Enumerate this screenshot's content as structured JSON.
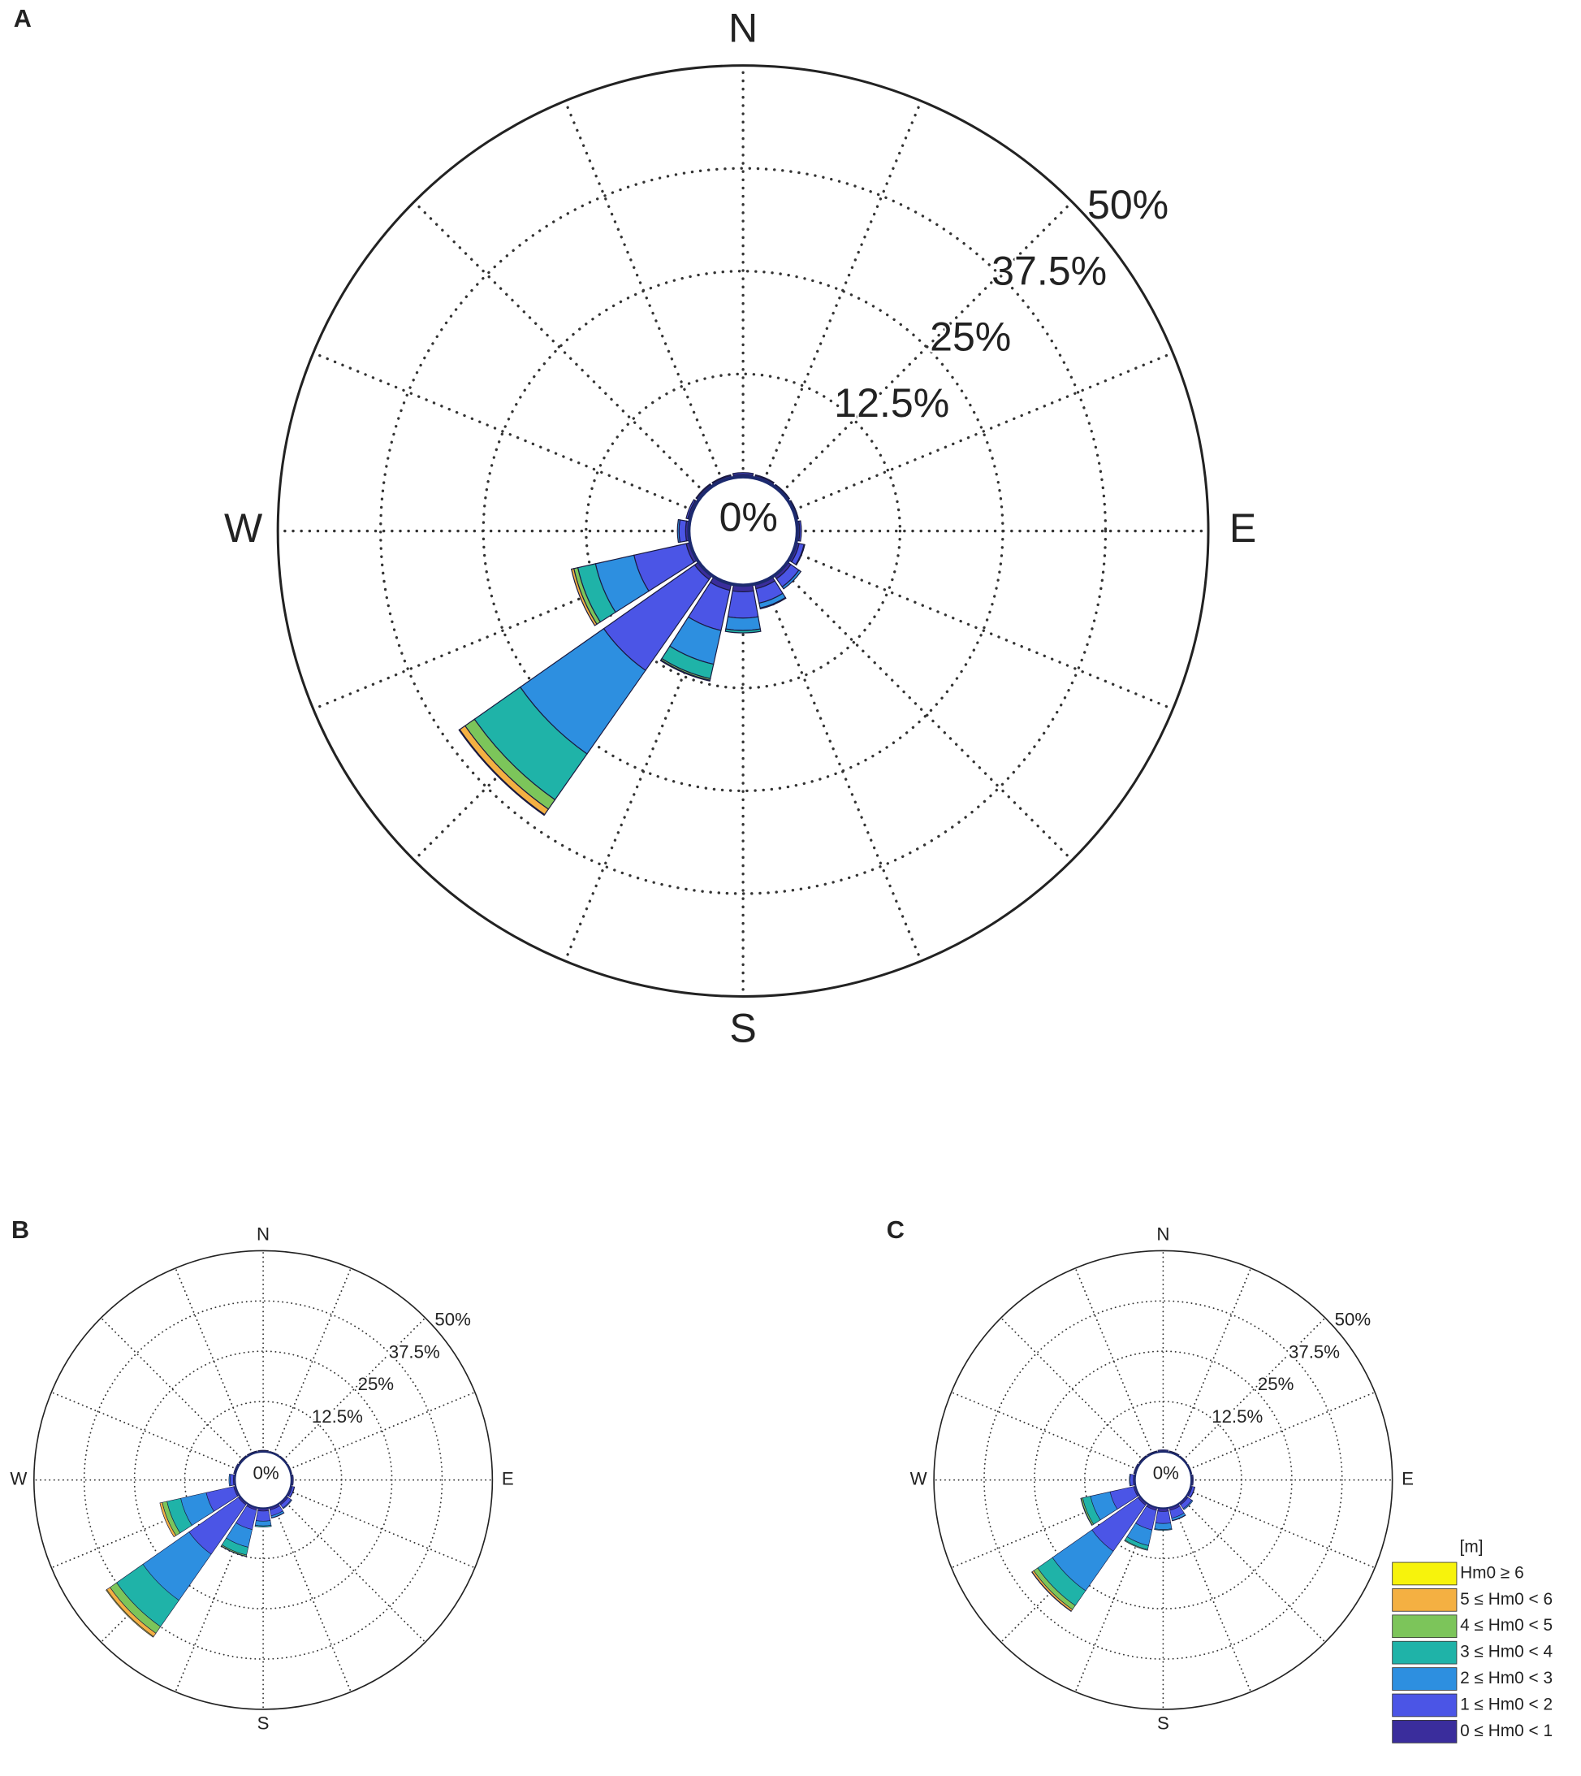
{
  "chart_data": [
    {
      "type": "rose",
      "label": "A",
      "x": [
        0,
        22.5,
        45,
        67.5,
        90,
        112.5,
        135,
        157.5,
        180,
        202.5,
        225,
        247.5,
        270,
        292.5,
        315,
        337.5
      ],
      "xticks": [
        {
          "value": 0,
          "label": "N"
        },
        {
          "value": 90,
          "label": "E"
        },
        {
          "value": 180,
          "label": "S"
        },
        {
          "value": 270,
          "label": "W"
        }
      ],
      "rlim": [
        0,
        50
      ],
      "rticks": [
        {
          "value": 0,
          "label": "0%"
        },
        {
          "value": 12.5,
          "label": "12.5%"
        },
        {
          "value": 25,
          "label": "25%"
        },
        {
          "value": 37.5,
          "label": "37.5%"
        },
        {
          "value": 50,
          "label": "50%"
        }
      ],
      "grid": true,
      "series": [
        {
          "color": "#3a2d9c",
          "values": [
            0.3,
            0.3,
            0.2,
            0.2,
            0.3,
            0.4,
            0.5,
            0.6,
            0.8,
            0.8,
            0.6,
            0.5,
            0.4,
            0.3,
            0.3,
            0.3
          ]
        },
        {
          "color": "#4b55e6",
          "values": [
            0.2,
            0.1,
            0.1,
            0.1,
            0.2,
            0.6,
            1.2,
            1.8,
            3.2,
            5,
            13.5,
            6.5,
            0.8,
            0.2,
            0.1,
            0.1
          ]
        },
        {
          "color": "#2d8fe0",
          "values": [
            0,
            0,
            0,
            0,
            0,
            0.1,
            0.3,
            0.6,
            1.5,
            4.2,
            12.4,
            4.8,
            0.2,
            0,
            0,
            0
          ]
        },
        {
          "color": "#1fb3a8",
          "values": [
            0,
            0,
            0,
            0,
            0,
            0,
            0,
            0.1,
            0.3,
            1.8,
            6.8,
            2.2,
            0,
            0,
            0,
            0
          ]
        },
        {
          "color": "#7cc55a",
          "values": [
            0,
            0,
            0,
            0,
            0,
            0,
            0,
            0,
            0,
            0.2,
            1.4,
            0.5,
            0,
            0,
            0,
            0
          ]
        },
        {
          "color": "#f4b042",
          "values": [
            0,
            0,
            0,
            0,
            0,
            0,
            0,
            0,
            0,
            0.1,
            0.8,
            0.3,
            0,
            0,
            0,
            0
          ]
        },
        {
          "color": "#f7f30c",
          "values": [
            0,
            0,
            0,
            0,
            0,
            0,
            0,
            0,
            0,
            0,
            0.1,
            0,
            0,
            0,
            0,
            0
          ]
        }
      ]
    },
    {
      "type": "rose",
      "label": "B",
      "x": [
        0,
        22.5,
        45,
        67.5,
        90,
        112.5,
        135,
        157.5,
        180,
        202.5,
        225,
        247.5,
        270,
        292.5,
        315,
        337.5
      ],
      "xticks": [
        {
          "value": 0,
          "label": "N"
        },
        {
          "value": 90,
          "label": "E"
        },
        {
          "value": 180,
          "label": "S"
        },
        {
          "value": 270,
          "label": "W"
        }
      ],
      "rlim": [
        0,
        50
      ],
      "rticks": [
        {
          "value": 0,
          "label": "0%"
        },
        {
          "value": 12.5,
          "label": "12.5%"
        },
        {
          "value": 25,
          "label": "25%"
        },
        {
          "value": 37.5,
          "label": "37.5%"
        },
        {
          "value": 50,
          "label": "50%"
        }
      ],
      "grid": true,
      "series": [
        {
          "color": "#3a2d9c",
          "values": [
            0.3,
            0.2,
            0.2,
            0.2,
            0.3,
            0.4,
            0.5,
            0.6,
            0.7,
            0.6,
            0.5,
            0.5,
            0.4,
            0.3,
            0.3,
            0.3
          ]
        },
        {
          "color": "#4b55e6",
          "values": [
            0.1,
            0.1,
            0.1,
            0.1,
            0.2,
            0.5,
            1,
            1.5,
            2.5,
            5,
            15,
            7,
            0.8,
            0.2,
            0.1,
            0.1
          ]
        },
        {
          "color": "#2d8fe0",
          "values": [
            0,
            0,
            0,
            0,
            0,
            0.1,
            0.2,
            0.5,
            1.2,
            4.5,
            14,
            6.5,
            0.3,
            0,
            0,
            0
          ]
        },
        {
          "color": "#1fb3a8",
          "values": [
            0,
            0,
            0,
            0,
            0,
            0,
            0,
            0.1,
            0.3,
            2,
            8,
            3.5,
            0,
            0,
            0,
            0
          ]
        },
        {
          "color": "#7cc55a",
          "values": [
            0,
            0,
            0,
            0,
            0,
            0,
            0,
            0,
            0,
            0.3,
            2,
            1.2,
            0,
            0,
            0,
            0
          ]
        },
        {
          "color": "#f4b042",
          "values": [
            0,
            0,
            0,
            0,
            0,
            0,
            0,
            0,
            0,
            0.1,
            1,
            0.6,
            0,
            0,
            0,
            0
          ]
        },
        {
          "color": "#f7f30c",
          "values": [
            0,
            0,
            0,
            0,
            0,
            0,
            0,
            0,
            0,
            0,
            0.2,
            0,
            0,
            0,
            0,
            0
          ]
        }
      ]
    },
    {
      "type": "rose",
      "label": "C",
      "x": [
        0,
        22.5,
        45,
        67.5,
        90,
        112.5,
        135,
        157.5,
        180,
        202.5,
        225,
        247.5,
        270,
        292.5,
        315,
        337.5
      ],
      "xticks": [
        {
          "value": 0,
          "label": "N"
        },
        {
          "value": 90,
          "label": "E"
        },
        {
          "value": 180,
          "label": "S"
        },
        {
          "value": 270,
          "label": "W"
        }
      ],
      "rlim": [
        0,
        50
      ],
      "rticks": [
        {
          "value": 0,
          "label": "0%"
        },
        {
          "value": 12.5,
          "label": "12.5%"
        },
        {
          "value": 25,
          "label": "25%"
        },
        {
          "value": 37.5,
          "label": "37.5%"
        },
        {
          "value": 50,
          "label": "50%"
        }
      ],
      "grid": true,
      "legend": "lower right",
      "legend_title": "[m]",
      "series": [
        {
          "name": "0 ≤ Hm0 < 1",
          "color": "#3a2d9c",
          "values": [
            0.3,
            0.3,
            0.2,
            0.2,
            0.3,
            0.4,
            0.5,
            0.7,
            0.8,
            0.7,
            0.6,
            0.5,
            0.4,
            0.3,
            0.3,
            0.3
          ]
        },
        {
          "name": "1 ≤ Hm0 < 2",
          "color": "#4b55e6",
          "values": [
            0.2,
            0.1,
            0.1,
            0.1,
            0.2,
            0.6,
            1.2,
            2,
            3,
            5,
            14,
            6,
            0.8,
            0.2,
            0.1,
            0.1
          ]
        },
        {
          "name": "2 ≤ Hm0 < 3",
          "color": "#2d8fe0",
          "values": [
            0,
            0,
            0,
            0,
            0,
            0.1,
            0.3,
            0.6,
            1.5,
            4,
            12,
            5,
            0.2,
            0,
            0,
            0
          ]
        },
        {
          "name": "3 ≤ Hm0 < 4",
          "color": "#1fb3a8",
          "values": [
            0,
            0,
            0,
            0,
            0,
            0,
            0,
            0.1,
            0.2,
            1,
            4.5,
            2,
            0,
            0,
            0,
            0
          ]
        },
        {
          "name": "4 ≤ Hm0 < 5",
          "color": "#7cc55a",
          "values": [
            0,
            0,
            0,
            0,
            0,
            0,
            0,
            0,
            0,
            0.2,
            1.2,
            0.4,
            0,
            0,
            0,
            0
          ]
        },
        {
          "name": "5 ≤ Hm0 < 6",
          "color": "#f4b042",
          "values": [
            0,
            0,
            0,
            0,
            0,
            0,
            0,
            0,
            0,
            0,
            0.5,
            0.1,
            0,
            0,
            0,
            0
          ]
        },
        {
          "name": "Hm0 ≥ 6",
          "color": "#f7f30c",
          "values": [
            0,
            0,
            0,
            0,
            0,
            0,
            0,
            0,
            0,
            0,
            0.1,
            0,
            0,
            0,
            0,
            0
          ]
        }
      ]
    }
  ]
}
